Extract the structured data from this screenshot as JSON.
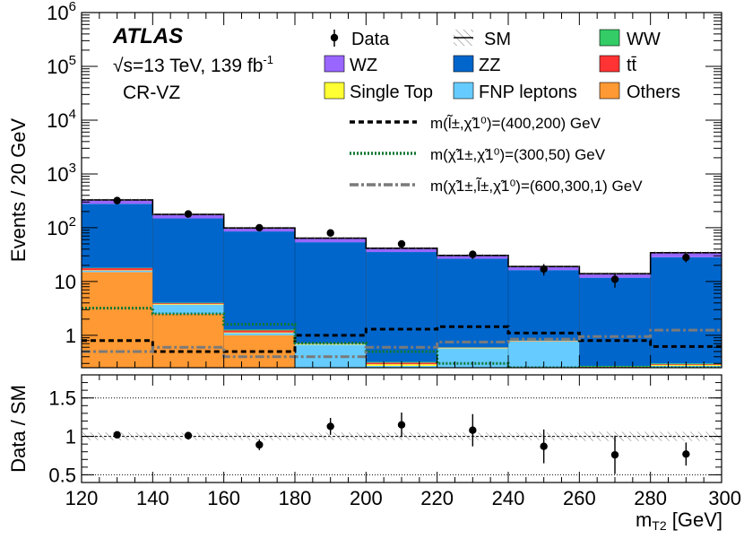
{
  "chart_data": {
    "type": "stacked-histogram-with-ratio",
    "experiment": "ATLAS",
    "energy_label": "√s=13 TeV, 139 fb",
    "lumi_unit_superscript": "-1",
    "region": "CR-VZ",
    "ylabel": "Events / 20 GeV",
    "ratio_ylabel": "Data / SM",
    "xlabel": "m",
    "xlabel_sub": "T2",
    "xlabel_unit": "[GeV]",
    "xlim": [
      120,
      300
    ],
    "ylim_log": [
      0.25,
      1000000
    ],
    "ratio_ylim": [
      0.4,
      1.8
    ],
    "x_ticks": [
      "120",
      "140",
      "160",
      "180",
      "200",
      "220",
      "240",
      "260",
      "280",
      "300"
    ],
    "y_ticks": [
      {
        "value": 1000000,
        "base": "10",
        "exp": "6"
      },
      {
        "value": 100000,
        "base": "10",
        "exp": "5"
      },
      {
        "value": 10000,
        "base": "10",
        "exp": "4"
      },
      {
        "value": 1000,
        "base": "10",
        "exp": "3"
      },
      {
        "value": 100,
        "base": "10",
        "exp": "2"
      },
      {
        "value": 10,
        "base": "10",
        "exp": ""
      },
      {
        "value": 1,
        "base": "1",
        "exp": ""
      }
    ],
    "ratio_ticks": [
      {
        "value": 1.5,
        "label": "1.5"
      },
      {
        "value": 1.0,
        "label": "1"
      },
      {
        "value": 0.5,
        "label": "0.5"
      }
    ],
    "ratio_reference_lines": [
      0.5,
      1.0,
      1.5
    ],
    "bin_edges": [
      120,
      140,
      160,
      180,
      200,
      220,
      240,
      260,
      280,
      300
    ],
    "stack": [
      {
        "name": "Others",
        "color": "#ff9933",
        "values": [
          15,
          2.5,
          1.0,
          0.22,
          0.22,
          0.22,
          0.22,
          0.22,
          0.25
        ]
      },
      {
        "name": "FNP leptons",
        "color": "#66ccff",
        "values": [
          0.9,
          1.2,
          0.1,
          0.45,
          0.05,
          0.35,
          0.55,
          0.02,
          0.02
        ]
      },
      {
        "name": "Single Top",
        "color": "#ffff33",
        "values": [
          0.3,
          0.1,
          0.03,
          0.02,
          0.02,
          0.01,
          0.01,
          0.01,
          0.01
        ]
      },
      {
        "name": "tt̄",
        "color": "#ff3333",
        "values": [
          1.5,
          0.15,
          0.1,
          0.01,
          0.02,
          0.01,
          0.01,
          0.01,
          0.01
        ]
      },
      {
        "name": "WW",
        "color": "#33cc66",
        "values": [
          0.3,
          0.1,
          0.05,
          0.01,
          0.01,
          0.01,
          0.01,
          0.01,
          0.01
        ]
      },
      {
        "name": "ZZ",
        "color": "#0066cc",
        "values": [
          260,
          145,
          84,
          53,
          35,
          26,
          15.5,
          11.5,
          28
        ]
      },
      {
        "name": "WZ",
        "color": "#9966ff",
        "values": [
          50,
          28,
          14,
          10,
          6,
          4.2,
          3,
          2.3,
          6
        ]
      }
    ],
    "sm_total": [
      328,
      177,
      99,
      64,
      41.5,
      30.5,
      19,
      14,
      34.3
    ],
    "data": [
      {
        "x": 130,
        "y": 320,
        "ratio": 1.02,
        "ratio_err": 0.04
      },
      {
        "x": 150,
        "y": 180,
        "ratio": 1.01,
        "ratio_err": 0.05
      },
      {
        "x": 170,
        "y": 100,
        "ratio": 0.89,
        "ratio_err": 0.07
      },
      {
        "x": 190,
        "y": 80,
        "ratio": 1.13,
        "ratio_err": 0.11
      },
      {
        "x": 210,
        "y": 50,
        "ratio": 1.15,
        "ratio_err": 0.16
      },
      {
        "x": 230,
        "y": 32,
        "ratio": 1.08,
        "ratio_err": 0.21
      },
      {
        "x": 250,
        "y": 17,
        "ratio": 0.87,
        "ratio_err": 0.22
      },
      {
        "x": 270,
        "y": 11,
        "ratio": 0.76,
        "ratio_err": 0.25
      },
      {
        "x": 290,
        "y": 28,
        "ratio": 0.77,
        "ratio_err": 0.15
      }
    ],
    "signals": [
      {
        "name": "m(l̃,χ̃1)=(400,200) GeV",
        "color": "#000000",
        "dash": "6 4",
        "values": [
          0.8,
          0.5,
          0.5,
          1.0,
          1.3,
          1.45,
          1.1,
          0.8,
          0.62
        ]
      },
      {
        "name": "m(χ̃1±,χ̃1⁰)=(300,50) GeV",
        "color": "#117733",
        "dash": "2 2",
        "values": [
          3.2,
          2.5,
          1.6,
          0.72,
          0.5,
          0.3,
          0.25,
          0.25,
          0.25
        ]
      },
      {
        "name": "m(χ̃1±,l̃±,χ̃1⁰)=(600,300,1) GeV",
        "color": "#7a7a7a",
        "dash": "10 3 3 3",
        "values": [
          0.5,
          0.6,
          0.4,
          0.4,
          0.6,
          0.75,
          0.85,
          0.95,
          1.25
        ]
      }
    ],
    "legend": {
      "data_label": "Data",
      "sm_label": "SM",
      "grid": [
        [
          {
            "label": "WZ",
            "color": "#9966ff"
          },
          {
            "label": "ZZ",
            "color": "#0066cc"
          },
          {
            "label": "tt̄",
            "color": "#ff3333"
          }
        ],
        [
          {
            "label": "Single Top",
            "color": "#ffff33"
          },
          {
            "label": "FNP leptons",
            "color": "#66ccff"
          },
          {
            "label": "Others",
            "color": "#ff9933"
          }
        ]
      ],
      "ww_label": "WW",
      "ww_color": "#33cc66",
      "signal_labels": [
        "m(l̃±,χ̃1⁰)=(400,200) GeV",
        "m(χ̃1±,χ̃1⁰)=(300,50) GeV",
        "m(χ̃1±,l̃±,χ̃1⁰)=(600,300,1) GeV"
      ]
    }
  }
}
